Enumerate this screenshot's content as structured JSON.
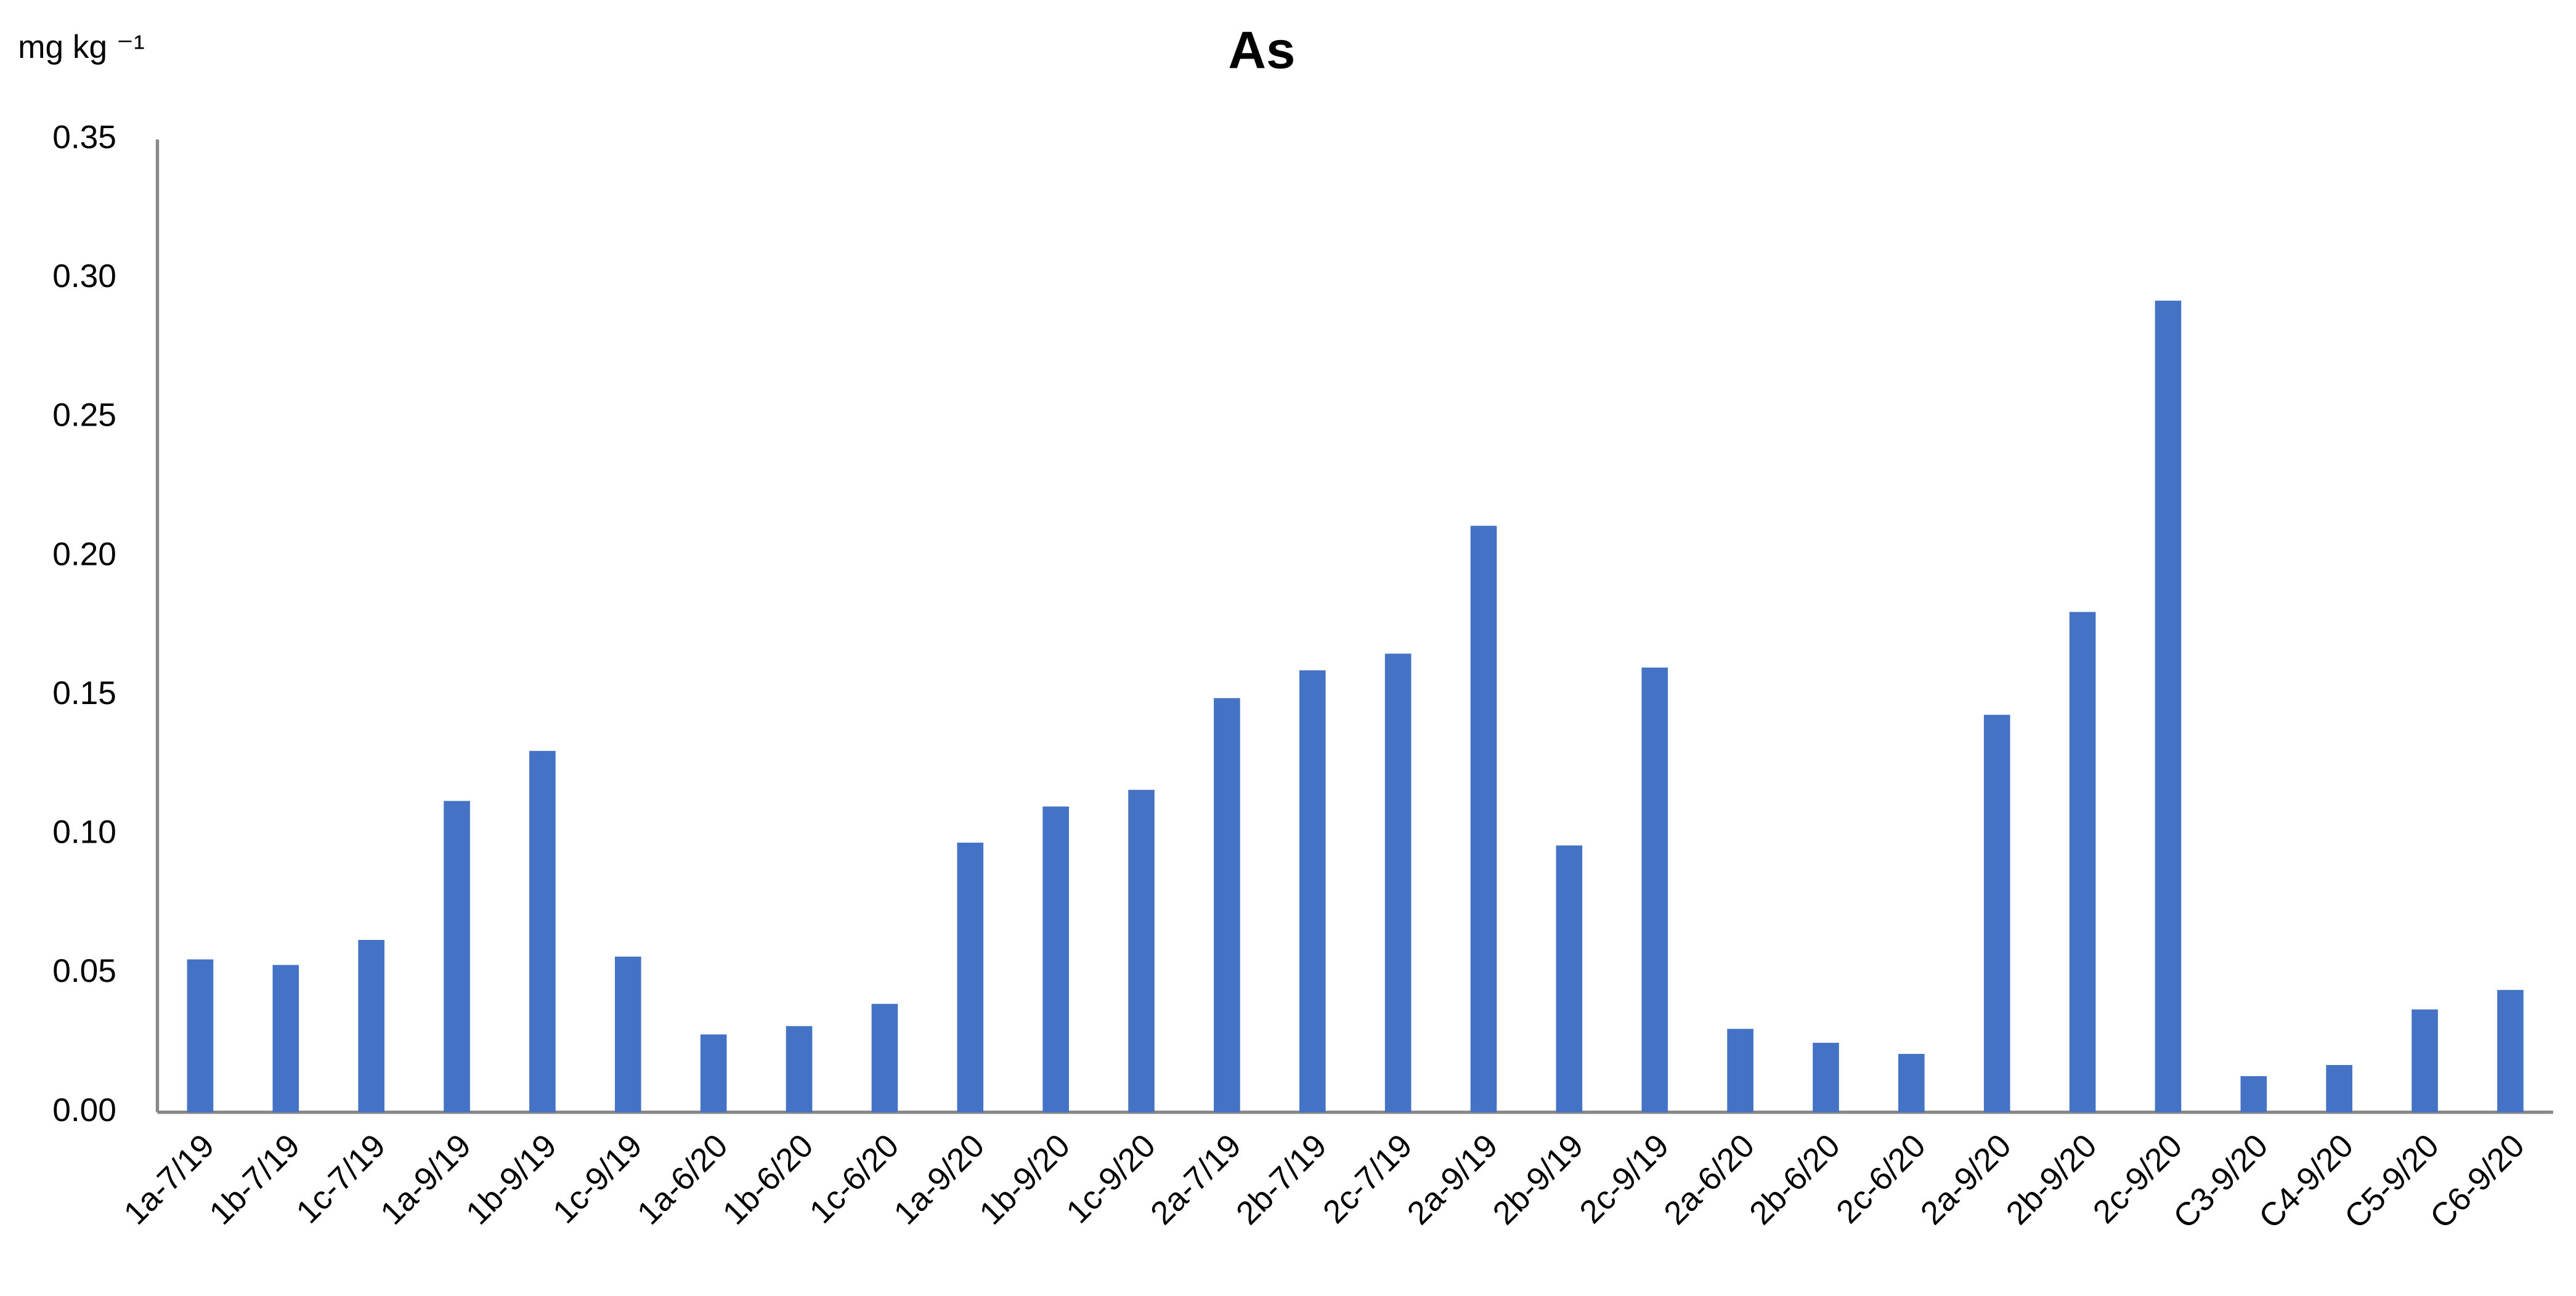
{
  "chart_data": {
    "type": "bar",
    "title": "As",
    "y_label": "mg kg ⁻¹",
    "categories": [
      "1a-7/19",
      "1b-7/19",
      "1c-7/19",
      "1a-9/19",
      "1b-9/19",
      "1c-9/19",
      "1a-6/20",
      "1b-6/20",
      "1c-6/20",
      "1a-9/20",
      "1b-9/20",
      "1c-9/20",
      "2a-7/19",
      "2b-7/19",
      "2c-7/19",
      "2a-9/19",
      "2b-9/19",
      "2c-9/19",
      "2a-6/20",
      "2b-6/20",
      "2c-6/20",
      "2a-9/20",
      "2b-9/20",
      "2c-9/20",
      "C3-9/20",
      "C4-9/20",
      "C5-9/20",
      "C6-9/20"
    ],
    "values": [
      0.055,
      0.053,
      0.062,
      0.112,
      0.13,
      0.056,
      0.028,
      0.031,
      0.039,
      0.097,
      0.11,
      0.116,
      0.149,
      0.159,
      0.165,
      0.211,
      0.096,
      0.16,
      0.03,
      0.025,
      0.021,
      0.143,
      0.18,
      0.292,
      0.013,
      0.017,
      0.037,
      0.044
    ],
    "color": "#4472c4",
    "ylim": [
      0,
      0.35
    ],
    "yticks": [
      {
        "value": 0,
        "label": "0.00"
      },
      {
        "value": 0.05,
        "label": "0.05"
      },
      {
        "value": 0.1,
        "label": "0.10"
      },
      {
        "value": 0.15,
        "label": "0.15"
      },
      {
        "value": 0.2,
        "label": "0.20"
      },
      {
        "value": 0.25,
        "label": "0.25"
      },
      {
        "value": 0.3,
        "label": "0.30"
      },
      {
        "value": 0.35,
        "label": "0.35"
      }
    ],
    "grid": false
  }
}
